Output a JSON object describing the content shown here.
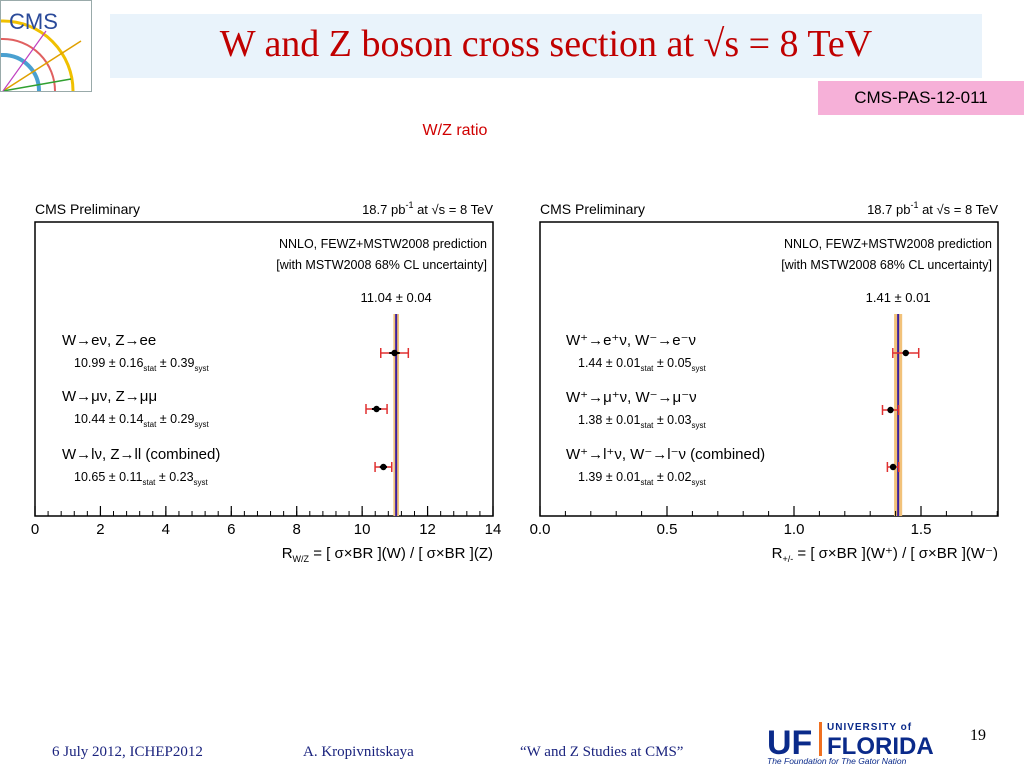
{
  "slide": {
    "title": "W and Z boson cross section at √s = 8 TeV",
    "badge": "CMS-PAS-12-011",
    "subtitle": "W/Z ratio",
    "page_number": "19",
    "logo_left": "CMS",
    "logo_right_top": "UNIVERSITY of",
    "logo_right_uf": "UF",
    "logo_right_main": "FLORIDA",
    "logo_right_tagline": "The Foundation for The Gator Nation"
  },
  "footer": {
    "date_conf": "6 July 2012, ICHEP2012",
    "author": "A. Kropivnitskaya",
    "talk": "“W and Z Studies at CMS”"
  },
  "colors": {
    "title": "#c00000",
    "title_bg": "#e9f3fb",
    "badge_bg": "#f6b0d8",
    "theory_line": "#3b1f9e",
    "theory_band": "#f2c27a",
    "error_bars": "#e03030",
    "footer_text": "#1a237e"
  },
  "chart_data": [
    {
      "type": "scatter",
      "header_left": "CMS Preliminary",
      "header_right": {
        "lumi": "18.7 pb",
        "lumi_exp": "-1",
        "energy": "at √s = 8 TeV"
      },
      "prediction_label": [
        "NNLO, FEWZ+MSTW2008 prediction",
        "[with MSTW2008 68% CL uncertainty]"
      ],
      "theory": {
        "value": 11.04,
        "uncertainty": 0.04,
        "label": "11.04 ± 0.04"
      },
      "xlim": [
        0,
        14
      ],
      "xticks": [
        0,
        2,
        4,
        6,
        8,
        10,
        12,
        14
      ],
      "xtick_labels": [
        "0",
        "2",
        "4",
        "6",
        "8",
        "10",
        "12",
        "14"
      ],
      "xlabel": {
        "main": "R",
        "sub": "W/Z",
        "rest": " = [ σ×BR ](W) / [ σ×BR ](Z)"
      },
      "points": [
        {
          "label": "W→eν, Z→ee",
          "value": 10.99,
          "stat": 0.16,
          "syst": 0.39,
          "value_text": "10.99 ± 0.16",
          "syst_text": "± 0.39"
        },
        {
          "label": "W→μν, Z→μμ",
          "value": 10.44,
          "stat": 0.14,
          "syst": 0.29,
          "value_text": "10.44 ± 0.14",
          "syst_text": "± 0.29"
        },
        {
          "label": "W→lν, Z→ll (combined)",
          "value": 10.65,
          "stat": 0.11,
          "syst": 0.23,
          "value_text": "10.65 ± 0.11",
          "syst_text": "± 0.23"
        }
      ],
      "stat_sub": "stat",
      "syst_sub": "syst"
    },
    {
      "type": "scatter",
      "header_left": "CMS Preliminary",
      "header_right": {
        "lumi": "18.7 pb",
        "lumi_exp": "-1",
        "energy": "at √s = 8 TeV"
      },
      "prediction_label": [
        "NNLO, FEWZ+MSTW2008 prediction",
        "[with MSTW2008 68% CL uncertainty]"
      ],
      "theory": {
        "value": 1.41,
        "uncertainty": 0.01,
        "label": "1.41 ± 0.01"
      },
      "xlim": [
        0.0,
        1.8
      ],
      "xticks": [
        0.0,
        0.5,
        1.0,
        1.5
      ],
      "xtick_labels": [
        "0.0",
        "0.5",
        "1.0",
        "1.5"
      ],
      "xlabel": {
        "main": "R",
        "sub": "+/-",
        "rest": " = [ σ×BR ](W⁺) / [ σ×BR ](W⁻)"
      },
      "points": [
        {
          "label": "W⁺→e⁺ν, W⁻→e⁻ν",
          "value": 1.44,
          "stat": 0.01,
          "syst": 0.05,
          "value_text": "1.44 ± 0.01",
          "syst_text": "± 0.05"
        },
        {
          "label": "W⁺→μ⁺ν, W⁻→μ⁻ν",
          "value": 1.38,
          "stat": 0.01,
          "syst": 0.03,
          "value_text": "1.38 ± 0.01",
          "syst_text": "± 0.03"
        },
        {
          "label": "W⁺→l⁺ν, W⁻→l⁻ν (combined)",
          "value": 1.39,
          "stat": 0.01,
          "syst": 0.02,
          "value_text": "1.39 ± 0.01",
          "syst_text": "± 0.02"
        }
      ],
      "stat_sub": "stat",
      "syst_sub": "syst"
    }
  ]
}
